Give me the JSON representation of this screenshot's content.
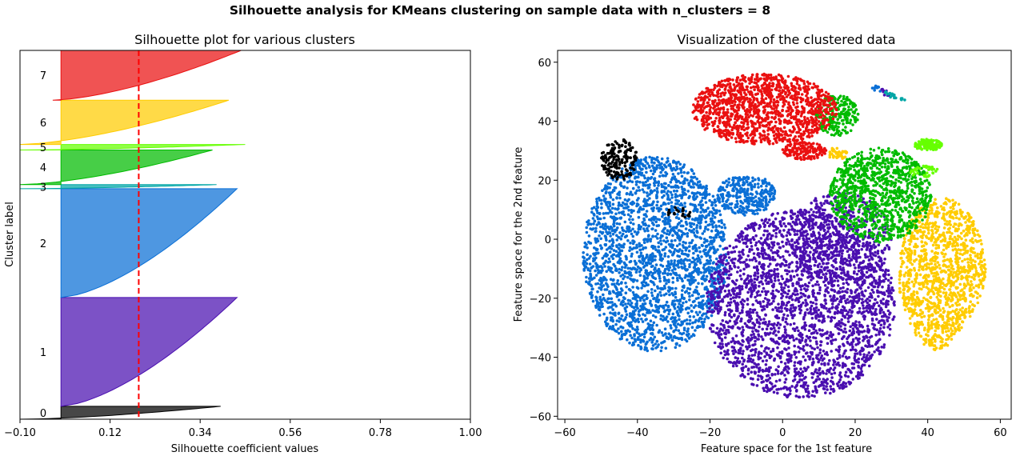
{
  "figure": {
    "suptitle": "Silhouette analysis for KMeans clustering on sample data with n_clusters = 8"
  },
  "chart_data": [
    {
      "type": "area",
      "title": "Silhouette plot for various clusters",
      "xlabel": "Silhouette coefficient values",
      "ylabel": "Cluster label",
      "xlim": [
        -0.1,
        1.0
      ],
      "xticks": [
        -0.1,
        0.12,
        0.34,
        0.56,
        0.78,
        1.0
      ],
      "xtick_labels": [
        "−0.10",
        "0.12",
        "0.34",
        "0.56",
        "0.78",
        "1.00"
      ],
      "average_silhouette_score": 0.19,
      "clusters": [
        {
          "label": "0",
          "color": "#000000",
          "min": -0.1,
          "max": 0.39,
          "y_start": 0.0,
          "y_end": 0.035
        },
        {
          "label": "1",
          "color": "#4a0fb0",
          "min": 0.0,
          "max": 0.43,
          "y_start": 0.035,
          "y_end": 0.33
        },
        {
          "label": "2",
          "color": "#0a6fd6",
          "min": 0.0,
          "max": 0.43,
          "y_start": 0.33,
          "y_end": 0.625
        },
        {
          "label": "3",
          "color": "#00a6a6",
          "min": -0.1,
          "max": 0.38,
          "y_start": 0.625,
          "y_end": 0.636
        },
        {
          "label": "4",
          "color": "#00bb00",
          "min": -0.1,
          "max": 0.37,
          "y_start": 0.636,
          "y_end": 0.73
        },
        {
          "label": "5",
          "color": "#66ff00",
          "min": -0.1,
          "max": 0.45,
          "y_start": 0.73,
          "y_end": 0.745
        },
        {
          "label": "6",
          "color": "#ffcc00",
          "min": -0.1,
          "max": 0.41,
          "y_start": 0.745,
          "y_end": 0.865
        },
        {
          "label": "7",
          "color": "#ea1010",
          "min": -0.02,
          "max": 0.44,
          "y_start": 0.865,
          "y_end": 1.0
        }
      ]
    },
    {
      "type": "scatter",
      "title": "Visualization of the clustered data",
      "xlabel": "Feature space for the 1st feature",
      "ylabel": "Feature space for the 2nd feature",
      "xlim": [
        -62,
        63
      ],
      "ylim": [
        -61,
        64
      ],
      "xticks": [
        -60,
        -40,
        -20,
        0,
        20,
        40,
        60
      ],
      "xtick_labels": [
        "−60",
        "−40",
        "−20",
        "0",
        "20",
        "40",
        "60"
      ],
      "yticks": [
        -60,
        -40,
        -20,
        0,
        20,
        40,
        60
      ],
      "ytick_labels": [
        "−60",
        "−40",
        "−20",
        "0",
        "20",
        "40",
        "60"
      ],
      "clusters": [
        {
          "label": "0",
          "color": "#000000",
          "regions": [
            {
              "cx": -45,
              "cy": 27,
              "rx": 5,
              "ry": 7,
              "n": 170
            },
            {
              "cx": -28,
              "cy": 9,
              "rx": 4,
              "ry": 2,
              "n": 20
            }
          ]
        },
        {
          "label": "1",
          "color": "#4a0fb0",
          "regions": [
            {
              "cx": 5,
              "cy": -22,
              "rx": 26,
              "ry": 32,
              "n": 2600
            },
            {
              "cx": 16,
              "cy": 0,
              "rx": 14,
              "ry": 16,
              "n": 500
            },
            {
              "cx": 30,
              "cy": 51,
              "rx": 3,
              "ry": 3,
              "n": 30
            }
          ]
        },
        {
          "label": "2",
          "color": "#0a6fd6",
          "regions": [
            {
              "cx": -35,
              "cy": -5,
              "rx": 20,
              "ry": 33,
              "n": 2300
            },
            {
              "cx": -10,
              "cy": 15,
              "rx": 8,
              "ry": 7,
              "n": 300
            },
            {
              "cx": 27,
              "cy": 52,
              "rx": 3,
              "ry": 2,
              "n": 20
            }
          ]
        },
        {
          "label": "3",
          "color": "#00a6a6",
          "regions": [
            {
              "cx": 33,
              "cy": 50,
              "rx": 5,
              "ry": 3,
              "n": 160
            }
          ]
        },
        {
          "label": "4",
          "color": "#00bb00",
          "regions": [
            {
              "cx": 27,
              "cy": 15,
              "rx": 14,
              "ry": 16,
              "n": 1000
            },
            {
              "cx": 15,
              "cy": 42,
              "rx": 6,
              "ry": 7,
              "n": 200
            }
          ]
        },
        {
          "label": "5",
          "color": "#66ff00",
          "regions": [
            {
              "cx": 40,
              "cy": 32,
              "rx": 4,
              "ry": 2,
              "n": 120
            },
            {
              "cx": 39,
              "cy": 23,
              "rx": 4,
              "ry": 2,
              "n": 40
            }
          ]
        },
        {
          "label": "6",
          "color": "#ffcc00",
          "regions": [
            {
              "cx": 44,
              "cy": -12,
              "rx": 12,
              "ry": 26,
              "n": 1300
            },
            {
              "cx": 15,
              "cy": 29,
              "rx": 3,
              "ry": 2,
              "n": 40
            }
          ]
        },
        {
          "label": "7",
          "color": "#ea1010",
          "regions": [
            {
              "cx": -5,
              "cy": 44,
              "rx": 20,
              "ry": 12,
              "n": 1300
            },
            {
              "cx": 6,
              "cy": 30,
              "rx": 6,
              "ry": 3,
              "n": 150
            }
          ]
        }
      ]
    }
  ]
}
